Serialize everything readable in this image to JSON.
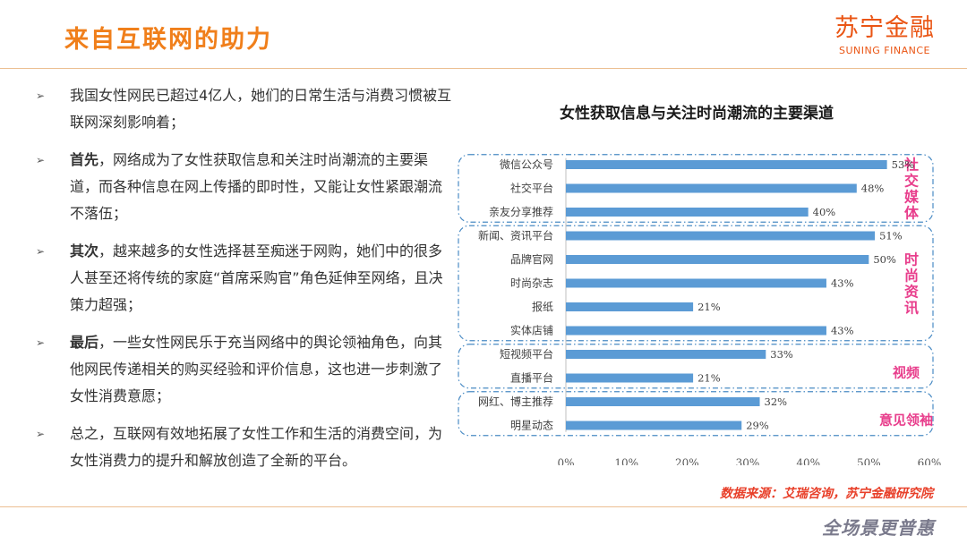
{
  "header": {
    "title": "来自互联网的助力",
    "brand_cn": "苏宁金融",
    "brand_en": "SUNING FINANCE"
  },
  "bullets": [
    {
      "bold": "",
      "text": "我国女性网民已超过4亿人，她们的日常生活与消费习惯被互联网深刻影响着；"
    },
    {
      "bold": "首先",
      "text": "，网络成为了女性获取信息和关注时尚潮流的主要渠道，而各种信息在网上传播的即时性，又能让女性紧跟潮流不落伍；"
    },
    {
      "bold": "其次",
      "text": "，越来越多的女性选择甚至痴迷于网购，她们中的很多人甚至还将传统的家庭“首席采购官”角色延伸至网络，且决策力超强；"
    },
    {
      "bold": "最后",
      "text": "，一些女性网民乐于充当网络中的舆论领袖角色，向其他网民传递相关的购买经验和评价信息，这也进一步刺激了女性消费意愿；"
    },
    {
      "bold": "",
      "text": "总之，互联网有效地拓展了女性工作和生活的消费空间，为女性消费力的提升和解放创造了全新的平台。"
    }
  ],
  "bullet_marker": "➢",
  "chart_data": {
    "type": "bar",
    "orientation": "horizontal",
    "title": "女性获取信息与关注时尚潮流的主要渠道",
    "categories": [
      "微信公众号",
      "社交平台",
      "亲友分享推荐",
      "新闻、资讯平台",
      "品牌官网",
      "时尚杂志",
      "报纸",
      "实体店铺",
      "短视频平台",
      "直播平台",
      "网红、博主推荐",
      "明星动态"
    ],
    "values": [
      53,
      48,
      40,
      51,
      50,
      43,
      21,
      43,
      33,
      21,
      32,
      29
    ],
    "value_labels": [
      "53%",
      "48%",
      "40%",
      "51%",
      "50%",
      "43%",
      "21%",
      "43%",
      "33%",
      "21%",
      "32%",
      "29%"
    ],
    "xlim": [
      0,
      60
    ],
    "x_ticks": [
      "0%",
      "10%",
      "20%",
      "30%",
      "40%",
      "50%",
      "60%"
    ],
    "grid": false,
    "bar_color": "#5b9bd5",
    "groups": [
      {
        "label": "社交媒体",
        "start": 0,
        "end": 2
      },
      {
        "label": "时尚资讯",
        "start": 3,
        "end": 7
      },
      {
        "label": "视频",
        "start": 8,
        "end": 9
      },
      {
        "label": "意见领袖",
        "start": 10,
        "end": 11
      }
    ],
    "group_label_color": "#e83e8c",
    "group_border_color": "#4a8bc4"
  },
  "source_note": "数据来源：艾瑞咨询，苏宁金融研究院",
  "footer_logo": "全场景更普惠",
  "colors": {
    "accent": "#f07f1b",
    "brand": "#ea5514"
  }
}
